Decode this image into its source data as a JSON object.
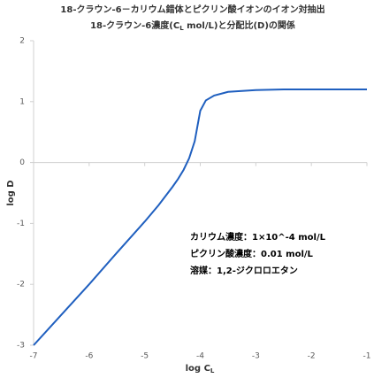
{
  "chart_data": {
    "type": "line",
    "title": "18-クラウン-6－カリウム錯体とピクリン酸イオンのイオン対抽出",
    "subtitle_parts": [
      "18-クラウン-6濃度(C",
      "L",
      " mol/L)と分配比(D)の関係"
    ],
    "x_label_parts": [
      "log C",
      "L"
    ],
    "y_label": "log D",
    "x": [
      -7,
      -6.5,
      -6,
      -5.5,
      -5,
      -4.75,
      -4.5,
      -4.4,
      -4.3,
      -4.2,
      -4.1,
      -4,
      -3.9,
      -3.75,
      -3.5,
      -3,
      -2.5,
      -2,
      -1.5,
      -1
    ],
    "series": [
      {
        "color": "#1f5fbf",
        "values": [
          -3,
          -2.5,
          -2,
          -1.48,
          -0.97,
          -0.7,
          -0.4,
          -0.27,
          -0.12,
          0.07,
          0.35,
          0.85,
          1.02,
          1.1,
          1.16,
          1.19,
          1.2,
          1.2,
          1.2,
          1.2
        ]
      }
    ],
    "xlim": [
      -7,
      -1
    ],
    "xticks": [
      -7,
      -6,
      -5,
      -4,
      -3,
      -2,
      -1
    ],
    "ylim": [
      -3,
      2
    ],
    "yticks": [
      -3,
      -2,
      -1,
      0,
      1,
      2
    ],
    "annotations": [
      "カリウム濃度：1×10^-4 mol/L",
      "ピクリン酸濃度：0.01 mol/L",
      "溶媒：1,2-ジクロロエタン"
    ]
  }
}
